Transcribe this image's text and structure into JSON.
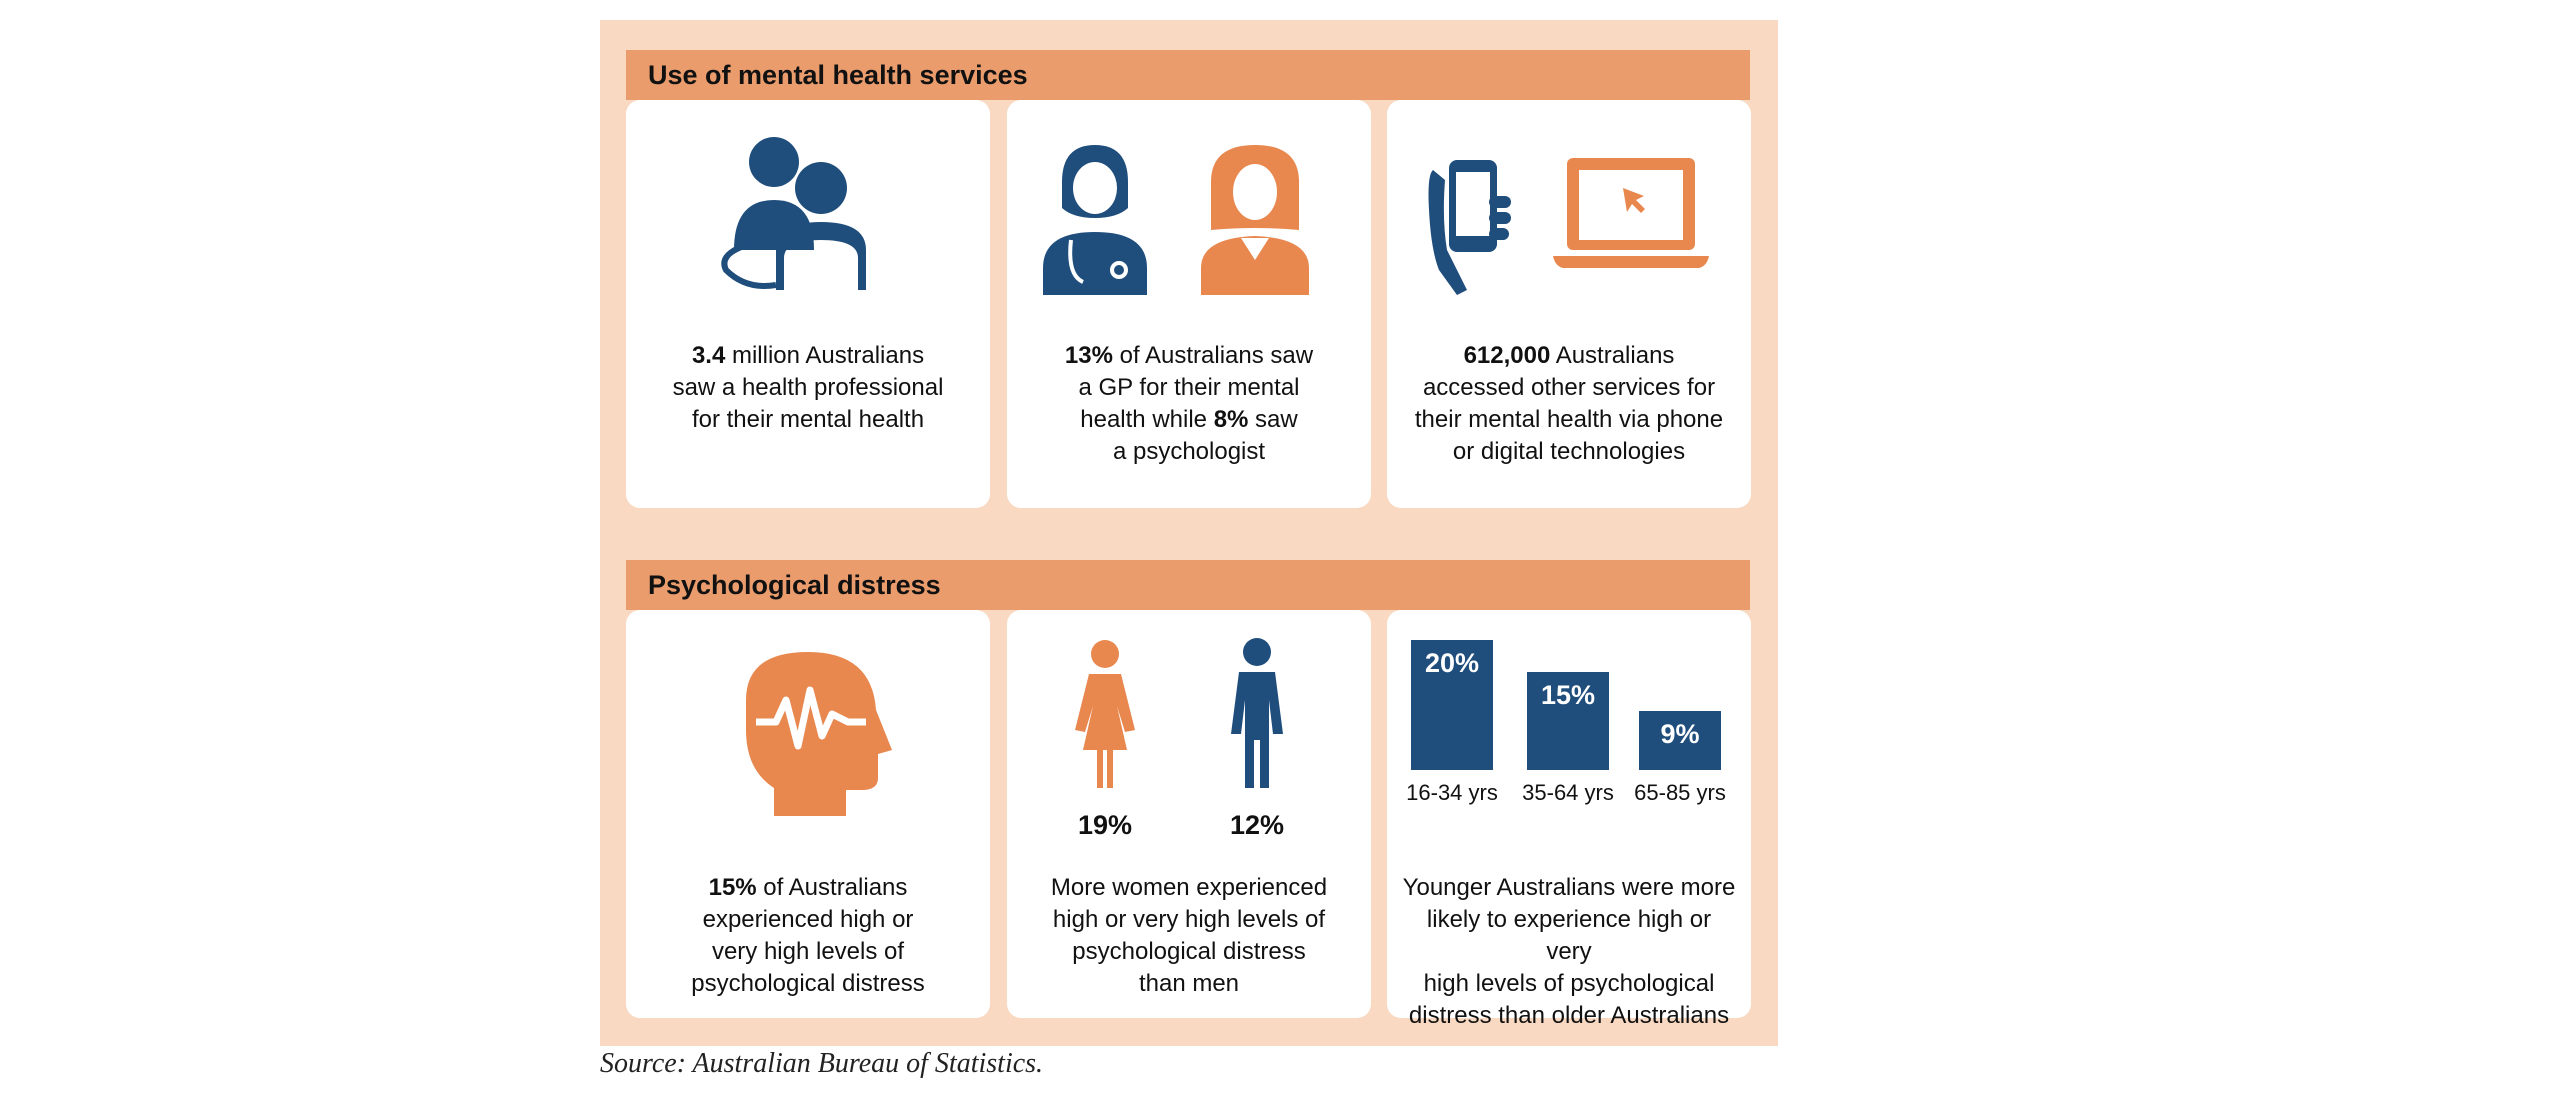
{
  "colors": {
    "navy": "#1f4e7d",
    "orange": "#e8884f",
    "header": "#ea9c6d",
    "panel": "#f9d9c2"
  },
  "sections": {
    "services_title": "Use of mental health services",
    "distress_title": "Psychological distress"
  },
  "cards": {
    "c1": {
      "icon": "people-consultation-icon",
      "bold": "3.4",
      "text1": " million Australians",
      "text2": "saw a health professional",
      "text3": "for their mental health"
    },
    "c2": {
      "icon": "doctor-and-psychologist-icon",
      "bold1": "13%",
      "text1": " of Australians saw",
      "text2": "a GP for their mental",
      "text3a": "health while ",
      "bold2": "8%",
      "text3b": " saw",
      "text4": "a psychologist"
    },
    "c3": {
      "icon": "phone-and-laptop-icon",
      "bold": "612,000",
      "text1": " Australians",
      "text2": "accessed other services for",
      "text3": "their mental health via phone",
      "text4": "or digital technologies"
    },
    "c4": {
      "icon": "head-brainwave-icon",
      "bold": "15%",
      "text1": " of Australians",
      "text2": "experienced high or",
      "text3": "very high levels of",
      "text4": "psychological distress"
    },
    "c5": {
      "icon": "woman-and-man-icon",
      "women_pct": "19%",
      "men_pct": "12%",
      "text1": "More women experienced",
      "text2": "high or very high levels of",
      "text3": "psychological distress",
      "text4": "than men"
    },
    "c6": {
      "text1": "Younger Australians were more",
      "text2": "likely to experience high or very",
      "text3": "high levels of psychological",
      "text4": "distress than older Australians"
    }
  },
  "chart_data": {
    "type": "bar",
    "categories": [
      "16-34 yrs",
      "35-64 yrs",
      "65-85 yrs"
    ],
    "values": [
      20,
      15,
      9
    ],
    "value_labels": [
      "20%",
      "15%",
      "9%"
    ],
    "ylim": [
      0,
      20
    ]
  },
  "source": "Source: Australian Bureau of Statistics."
}
